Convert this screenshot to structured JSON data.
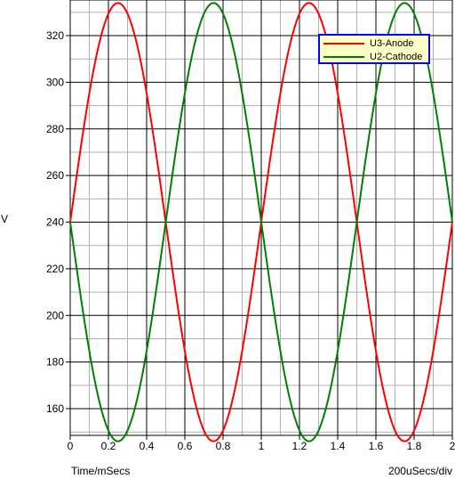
{
  "chart_data": {
    "type": "line",
    "ylabel": "V",
    "xlabel": "Time/mSecs",
    "x_scale_note": "200uSecs/div",
    "xlim": [
      0,
      2
    ],
    "ylim": [
      148,
      334
    ],
    "xticks": [
      "0",
      "0.2",
      "0.4",
      "0.6",
      "0.8",
      "1",
      "1.2",
      "1.4",
      "1.6",
      "1.8",
      "2"
    ],
    "yticks": [
      "160",
      "180",
      "200",
      "220",
      "240",
      "260",
      "280",
      "300",
      "320"
    ],
    "grid": true,
    "legend_position": "top-right",
    "series": [
      {
        "name": "U3-Anode",
        "color": "#ff0000",
        "waveform": "sine",
        "offset": 240,
        "amplitude": 94,
        "frequency_khz": 1,
        "phase": 0,
        "x": [
          0,
          0.25,
          0.5,
          0.75,
          1.0,
          1.25,
          1.5,
          1.75,
          2.0
        ],
        "values": [
          240,
          334,
          240,
          148,
          240,
          334,
          240,
          148,
          240
        ]
      },
      {
        "name": "U2-Cathode",
        "color": "#008000",
        "waveform": "sine",
        "offset": 240,
        "amplitude": 94,
        "frequency_khz": 1,
        "phase": 180,
        "x": [
          0,
          0.25,
          0.5,
          0.75,
          1.0,
          1.25,
          1.5,
          1.75,
          2.0
        ],
        "values": [
          240,
          148,
          240,
          334,
          240,
          148,
          240,
          334,
          240
        ]
      }
    ]
  }
}
